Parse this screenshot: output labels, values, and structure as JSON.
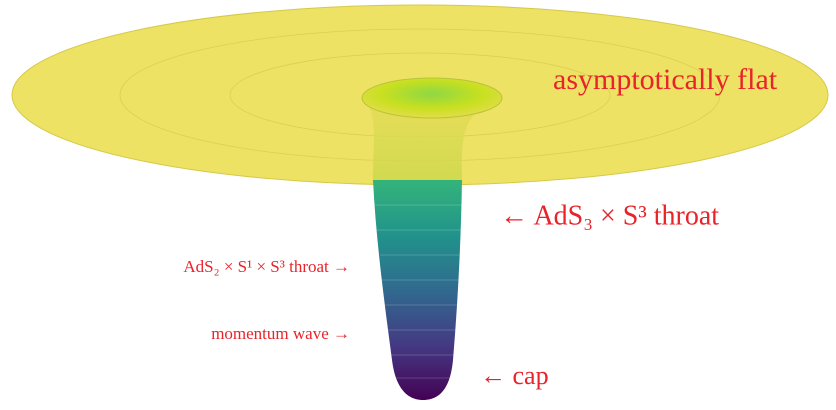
{
  "labels": {
    "asymptotic": "asymptotically flat",
    "ads3_throat": "← AdS₃ × S³ throat",
    "ads2_throat": "AdS₂ × S¹ × S³ throat →",
    "momentum_wave": "momentum wave →",
    "cap": "← cap"
  }
}
